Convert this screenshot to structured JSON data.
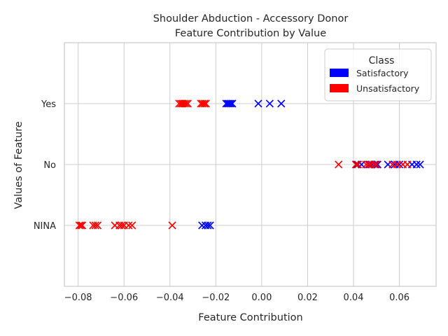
{
  "chart_data": {
    "type": "scatter",
    "title": "Shoulder Abduction - Accessory Donor",
    "subtitle": "Feature Contribution by Value",
    "xlabel": "Feature Contribution",
    "ylabel": "Values of Feature",
    "xlim": [
      -0.086,
      0.076
    ],
    "ylim": [
      -1,
      3
    ],
    "xticks": [
      -0.08,
      -0.06,
      -0.04,
      -0.02,
      0.0,
      0.02,
      0.04,
      0.06
    ],
    "xtick_labels": [
      "−0.08",
      "−0.06",
      "−0.04",
      "−0.02",
      "0.00",
      "0.02",
      "0.04",
      "0.06"
    ],
    "categories": [
      "NINA",
      "No",
      "Yes"
    ],
    "grid": true,
    "marker": "x",
    "legend": {
      "title": "Class",
      "position": "top-right",
      "entries": [
        {
          "label": "Satisfactory",
          "color": "#0000ff"
        },
        {
          "label": "Unsatisfactory",
          "color": "#ff0000"
        }
      ]
    },
    "series": [
      {
        "name": "Satisfactory",
        "color": "#0000ff",
        "points": [
          {
            "x": -0.0155,
            "y": "Yes"
          },
          {
            "x": -0.0148,
            "y": "Yes"
          },
          {
            "x": -0.0142,
            "y": "Yes"
          },
          {
            "x": -0.0135,
            "y": "Yes"
          },
          {
            "x": -0.0128,
            "y": "Yes"
          },
          {
            "x": -0.0015,
            "y": "Yes"
          },
          {
            "x": 0.0035,
            "y": "Yes"
          },
          {
            "x": 0.0085,
            "y": "Yes"
          },
          {
            "x": 0.0415,
            "y": "No"
          },
          {
            "x": 0.0435,
            "y": "No"
          },
          {
            "x": 0.047,
            "y": "No"
          },
          {
            "x": 0.048,
            "y": "No"
          },
          {
            "x": 0.0495,
            "y": "No"
          },
          {
            "x": 0.0505,
            "y": "No"
          },
          {
            "x": 0.055,
            "y": "No"
          },
          {
            "x": 0.058,
            "y": "No"
          },
          {
            "x": 0.06,
            "y": "No"
          },
          {
            "x": 0.0655,
            "y": "No"
          },
          {
            "x": 0.0675,
            "y": "No"
          },
          {
            "x": 0.069,
            "y": "No"
          },
          {
            "x": -0.026,
            "y": "NINA"
          },
          {
            "x": -0.0245,
            "y": "NINA"
          },
          {
            "x": -0.0235,
            "y": "NINA"
          },
          {
            "x": -0.0225,
            "y": "NINA"
          }
        ]
      },
      {
        "name": "Unsatisfactory",
        "color": "#ff0000",
        "points": [
          {
            "x": -0.036,
            "y": "Yes"
          },
          {
            "x": -0.0352,
            "y": "Yes"
          },
          {
            "x": -0.0345,
            "y": "Yes"
          },
          {
            "x": -0.0338,
            "y": "Yes"
          },
          {
            "x": -0.033,
            "y": "Yes"
          },
          {
            "x": -0.0322,
            "y": "Yes"
          },
          {
            "x": -0.0265,
            "y": "Yes"
          },
          {
            "x": -0.0258,
            "y": "Yes"
          },
          {
            "x": -0.025,
            "y": "Yes"
          },
          {
            "x": -0.0243,
            "y": "Yes"
          },
          {
            "x": 0.0335,
            "y": "No"
          },
          {
            "x": 0.041,
            "y": "No"
          },
          {
            "x": 0.042,
            "y": "No"
          },
          {
            "x": 0.0455,
            "y": "No"
          },
          {
            "x": 0.0465,
            "y": "No"
          },
          {
            "x": 0.0475,
            "y": "No"
          },
          {
            "x": 0.049,
            "y": "No"
          },
          {
            "x": 0.05,
            "y": "No"
          },
          {
            "x": 0.057,
            "y": "No"
          },
          {
            "x": 0.059,
            "y": "No"
          },
          {
            "x": 0.0615,
            "y": "No"
          },
          {
            "x": 0.0635,
            "y": "No"
          },
          {
            "x": -0.0795,
            "y": "NINA"
          },
          {
            "x": -0.0788,
            "y": "NINA"
          },
          {
            "x": -0.0782,
            "y": "NINA"
          },
          {
            "x": -0.0735,
            "y": "NINA"
          },
          {
            "x": -0.0725,
            "y": "NINA"
          },
          {
            "x": -0.0715,
            "y": "NINA"
          },
          {
            "x": -0.064,
            "y": "NINA"
          },
          {
            "x": -0.062,
            "y": "NINA"
          },
          {
            "x": -0.061,
            "y": "NINA"
          },
          {
            "x": -0.06,
            "y": "NINA"
          },
          {
            "x": -0.058,
            "y": "NINA"
          },
          {
            "x": -0.0565,
            "y": "NINA"
          },
          {
            "x": -0.039,
            "y": "NINA"
          }
        ]
      }
    ]
  }
}
